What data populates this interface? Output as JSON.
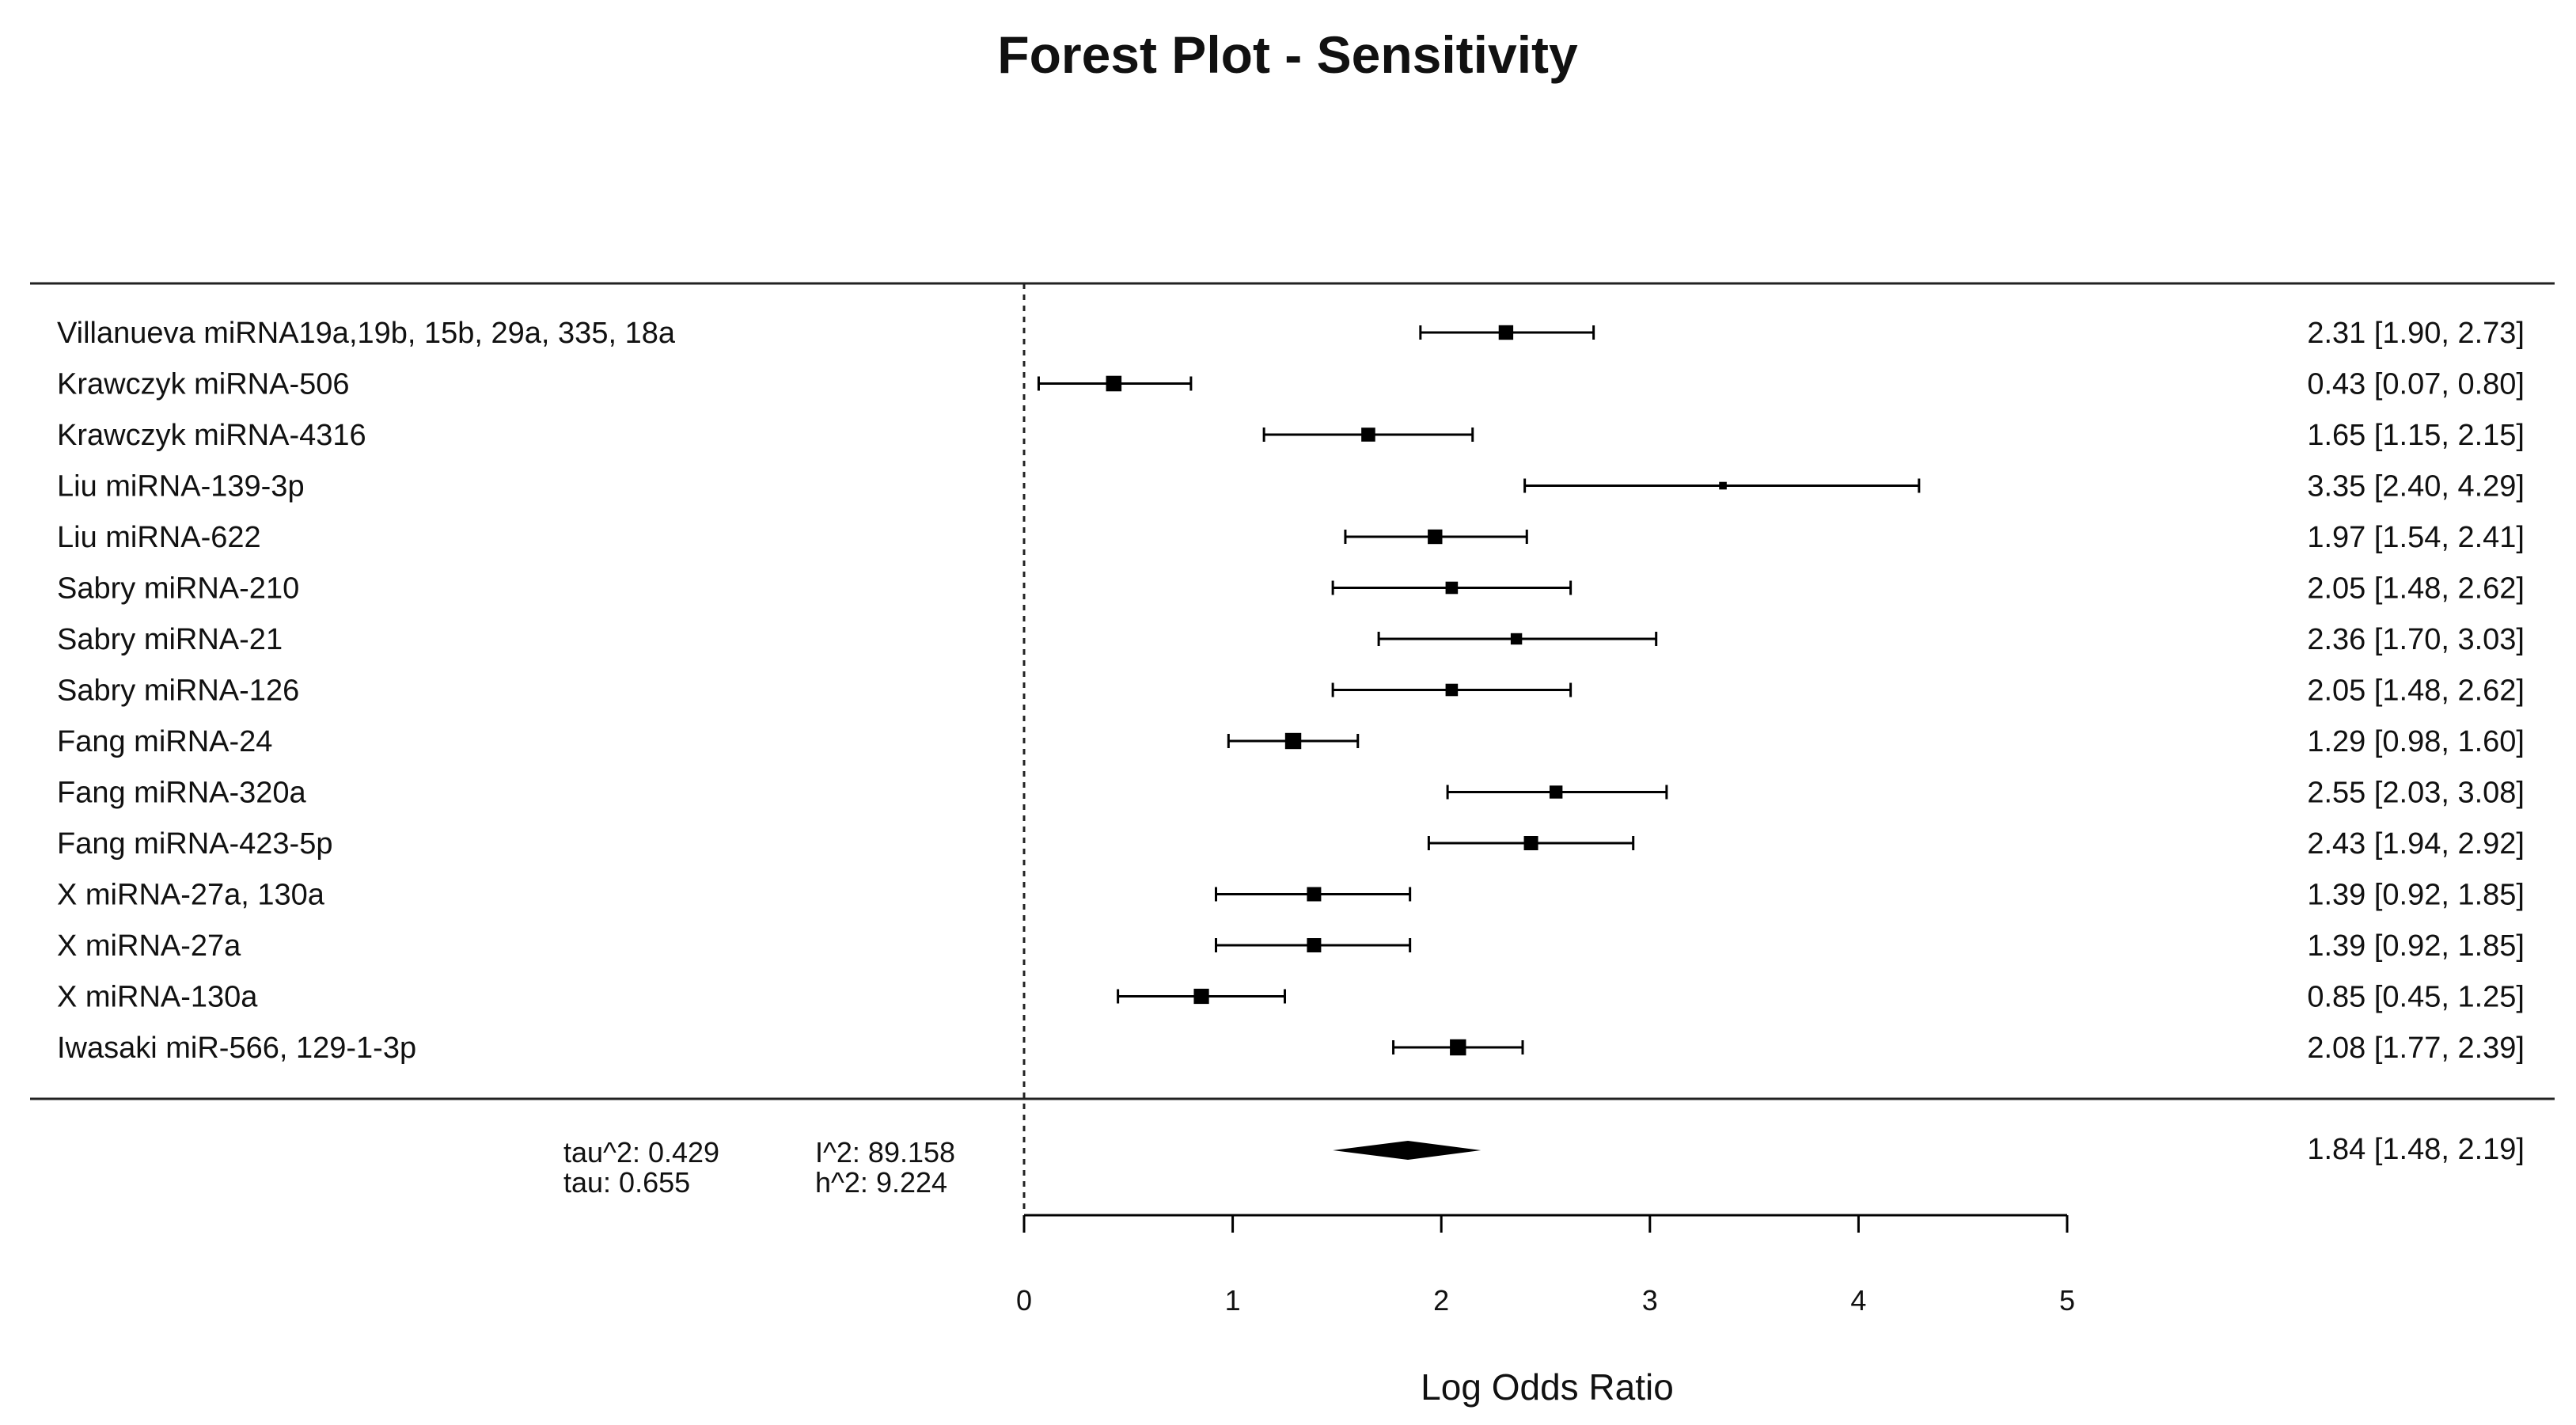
{
  "chart_data": {
    "type": "forest",
    "title": "Forest Plot - Sensitivity",
    "xlabel": "Log Odds Ratio",
    "xlim": [
      0,
      5
    ],
    "xticks": [
      "0",
      "1",
      "2",
      "3",
      "4",
      "5"
    ],
    "reference_line": 0,
    "studies": [
      {
        "label": "Villanueva miRNA19a,19b, 15b, 29a, 335, 18a",
        "estimate": 2.31,
        "lower": 1.9,
        "upper": 2.73,
        "text": "2.31 [1.90, 2.73]",
        "weight": 0.62
      },
      {
        "label": "Krawczyk miRNA-506",
        "estimate": 0.43,
        "lower": 0.07,
        "upper": 0.8,
        "text": "0.43 [0.07, 0.80]",
        "weight": 0.68
      },
      {
        "label": "Krawczyk miRNA-4316",
        "estimate": 1.65,
        "lower": 1.15,
        "upper": 2.15,
        "text": "1.65 [1.15, 2.15]",
        "weight": 0.58
      },
      {
        "label": "Liu miRNA-139-3p",
        "estimate": 3.35,
        "lower": 2.4,
        "upper": 4.29,
        "text": "3.35 [2.40, 4.29]",
        "weight": 0.18
      },
      {
        "label": "Liu miRNA-622",
        "estimate": 1.97,
        "lower": 1.54,
        "upper": 2.41,
        "text": "1.97 [1.54, 2.41]",
        "weight": 0.62
      },
      {
        "label": "Sabry miRNA-210",
        "estimate": 2.05,
        "lower": 1.48,
        "upper": 2.62,
        "text": "2.05 [1.48, 2.62]",
        "weight": 0.48
      },
      {
        "label": "Sabry miRNA-21",
        "estimate": 2.36,
        "lower": 1.7,
        "upper": 3.03,
        "text": "2.36 [1.70, 3.03]",
        "weight": 0.42
      },
      {
        "label": "Sabry miRNA-126",
        "estimate": 2.05,
        "lower": 1.48,
        "upper": 2.62,
        "text": "2.05 [1.48, 2.62]",
        "weight": 0.48
      },
      {
        "label": "Fang miRNA-24",
        "estimate": 1.29,
        "lower": 0.98,
        "upper": 1.6,
        "text": "1.29 [0.98, 1.60]",
        "weight": 0.72
      },
      {
        "label": "Fang miRNA-320a",
        "estimate": 2.55,
        "lower": 2.03,
        "upper": 3.08,
        "text": "2.55 [2.03, 3.08]",
        "weight": 0.52
      },
      {
        "label": "Fang miRNA-423-5p",
        "estimate": 2.43,
        "lower": 1.94,
        "upper": 2.92,
        "text": "2.43 [1.94, 2.92]",
        "weight": 0.6
      },
      {
        "label": "X miRNA-27a, 130a",
        "estimate": 1.39,
        "lower": 0.92,
        "upper": 1.85,
        "text": "1.39 [0.92, 1.85]",
        "weight": 0.6
      },
      {
        "label": "X miRNA-27a",
        "estimate": 1.39,
        "lower": 0.92,
        "upper": 1.85,
        "text": "1.39 [0.92, 1.85]",
        "weight": 0.6
      },
      {
        "label": "X miRNA-130a",
        "estimate": 0.85,
        "lower": 0.45,
        "upper": 1.25,
        "text": "0.85 [0.45, 1.25]",
        "weight": 0.66
      },
      {
        "label": "Iwasaki miR-566, 129-1-3p",
        "estimate": 2.08,
        "lower": 1.77,
        "upper": 2.39,
        "text": "2.08 [1.77, 2.39]",
        "weight": 0.72
      }
    ],
    "summary": {
      "estimate": 1.84,
      "lower": 1.48,
      "upper": 2.19,
      "text": "1.84 [1.48, 2.19]"
    },
    "heterogeneity": {
      "tau2": "tau^2: 0.429",
      "tau": "tau: 0.655",
      "I2": "I^2: 89.158",
      "H2": "h^2: 9.224"
    }
  }
}
